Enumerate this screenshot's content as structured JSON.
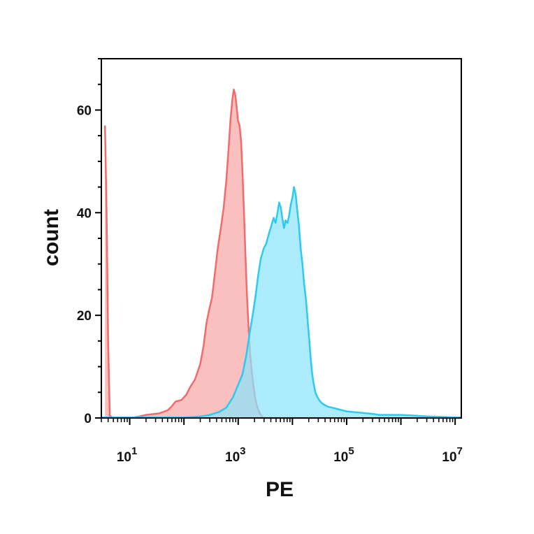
{
  "chart_data": {
    "type": "area",
    "title": "",
    "xlabel": "PE",
    "ylabel": "count",
    "x_scale": "log",
    "xlim": [
      3,
      13000000
    ],
    "ylim": [
      0,
      70
    ],
    "x_ticks": [
      {
        "value": 10,
        "base": "10",
        "exp": "1"
      },
      {
        "value": 1000,
        "base": "10",
        "exp": "3"
      },
      {
        "value": 100000,
        "base": "10",
        "exp": "5"
      },
      {
        "value": 10000000,
        "base": "10",
        "exp": "7"
      }
    ],
    "y_ticks": [
      0,
      20,
      40,
      60
    ],
    "grid": false,
    "legend": "none",
    "series": [
      {
        "color": "#f26b6b",
        "fill": "#f8a6a6",
        "points": [
          [
            3.5,
            57
          ],
          [
            3.75,
            40
          ],
          [
            4.0,
            15
          ],
          [
            4.3,
            0.4
          ],
          [
            5,
            0
          ],
          [
            10,
            0
          ],
          [
            15,
            0.3
          ],
          [
            20,
            0.6
          ],
          [
            35,
            0.9
          ],
          [
            50,
            1.5
          ],
          [
            60,
            2.3
          ],
          [
            70,
            3.2
          ],
          [
            90,
            3.5
          ],
          [
            110,
            4.5
          ],
          [
            130,
            6
          ],
          [
            160,
            7.5
          ],
          [
            200,
            10.5
          ],
          [
            230,
            14
          ],
          [
            260,
            18.5
          ],
          [
            290,
            21
          ],
          [
            330,
            23.5
          ],
          [
            370,
            28
          ],
          [
            420,
            33
          ],
          [
            480,
            37
          ],
          [
            540,
            41
          ],
          [
            600,
            46
          ],
          [
            660,
            52
          ],
          [
            720,
            58
          ],
          [
            780,
            62
          ],
          [
            830,
            64
          ],
          [
            880,
            63
          ],
          [
            930,
            61
          ],
          [
            990,
            58
          ],
          [
            1060,
            57
          ],
          [
            1130,
            54
          ],
          [
            1200,
            48
          ],
          [
            1280,
            40
          ],
          [
            1360,
            32
          ],
          [
            1450,
            24
          ],
          [
            1550,
            18
          ],
          [
            1650,
            13
          ],
          [
            1780,
            9
          ],
          [
            1900,
            6.5
          ],
          [
            2050,
            4
          ],
          [
            2200,
            2.5
          ],
          [
            2400,
            1.3
          ],
          [
            2600,
            0.6
          ],
          [
            2800,
            0.2
          ],
          [
            3000,
            0
          ],
          [
            13000000,
            0
          ]
        ]
      },
      {
        "color": "#2ec9f0",
        "fill": "#8be3fb",
        "points": [
          [
            3,
            0.1
          ],
          [
            100,
            0.1
          ],
          [
            150,
            0.2
          ],
          [
            200,
            0.3
          ],
          [
            300,
            0.6
          ],
          [
            450,
            1.2
          ],
          [
            600,
            2
          ],
          [
            800,
            4
          ],
          [
            1000,
            6.5
          ],
          [
            1200,
            8.5
          ],
          [
            1400,
            12
          ],
          [
            1600,
            16
          ],
          [
            1850,
            20
          ],
          [
            2100,
            24
          ],
          [
            2350,
            28
          ],
          [
            2600,
            31
          ],
          [
            2950,
            33
          ],
          [
            3300,
            34
          ],
          [
            3700,
            36
          ],
          [
            4100,
            37.5
          ],
          [
            4500,
            39
          ],
          [
            4900,
            38
          ],
          [
            5300,
            40
          ],
          [
            5700,
            42
          ],
          [
            6100,
            41
          ],
          [
            6500,
            39
          ],
          [
            7000,
            37
          ],
          [
            7500,
            38.5
          ],
          [
            8100,
            38
          ],
          [
            8700,
            39.5
          ],
          [
            9300,
            41.5
          ],
          [
            10000,
            43
          ],
          [
            10700,
            45
          ],
          [
            11500,
            43.5
          ],
          [
            12300,
            40.5
          ],
          [
            13200,
            37.5
          ],
          [
            14200,
            33
          ],
          [
            15300,
            30
          ],
          [
            16500,
            26
          ],
          [
            17800,
            23
          ],
          [
            19100,
            19
          ],
          [
            20500,
            15
          ],
          [
            21800,
            11.5
          ],
          [
            23200,
            8.5
          ],
          [
            24800,
            6.5
          ],
          [
            26500,
            5
          ],
          [
            28500,
            4.2
          ],
          [
            31000,
            3.5
          ],
          [
            34000,
            3
          ],
          [
            38000,
            2.6
          ],
          [
            45000,
            2.2
          ],
          [
            55000,
            2
          ],
          [
            70000,
            1.7
          ],
          [
            100000,
            1.3
          ],
          [
            150000,
            1.1
          ],
          [
            200000,
            1
          ],
          [
            300000,
            0.8
          ],
          [
            400000,
            0.6
          ],
          [
            600000,
            0.6
          ],
          [
            1000000,
            0.6
          ],
          [
            1500000,
            0.5
          ],
          [
            3000000,
            0.3
          ],
          [
            6000000,
            0.2
          ],
          [
            10000000,
            0.1
          ],
          [
            13000000,
            0.1
          ]
        ]
      }
    ]
  }
}
